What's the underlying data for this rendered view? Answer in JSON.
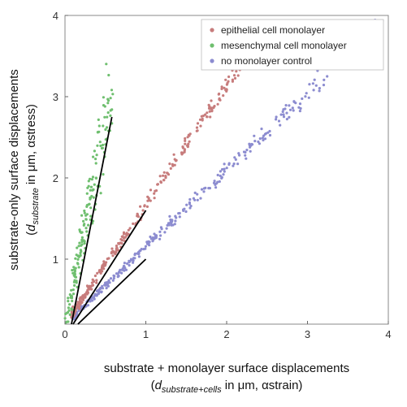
{
  "chart_data": {
    "type": "scatter",
    "xlim": [
      0,
      4
    ],
    "ylim": [
      0.2,
      4
    ],
    "xticks": [
      0,
      1,
      2,
      3,
      4
    ],
    "yticks": [
      1,
      2,
      3,
      4
    ],
    "xlabel": {
      "line1": "substrate + monolayer surface displacements",
      "line2_open": "(",
      "line2_var": "d",
      "line2_sub": "substrate+cells",
      "line2_rest": " in μm, αstrain)"
    },
    "ylabel": {
      "line1": "substrate-only surface displacements",
      "line2_open": "(",
      "line2_var": "d",
      "line2_sub": "substrate",
      "line2_rest": " in μm, αstress)"
    },
    "legend_position": "top-right",
    "grid": false,
    "series": [
      {
        "name": "epithelial cell monolayer",
        "color": "#c77c7c",
        "slope": 1.55,
        "x_range": [
          0.08,
          2.3
        ],
        "noise": 0.09,
        "count": 300,
        "fit_line": {
          "x": [
            0.1,
            1.0
          ],
          "y": [
            0.2,
            1.6
          ]
        }
      },
      {
        "name": "mesenchymal cell monolayer",
        "color": "#6fbf6f",
        "slope": 5.0,
        "x_range": [
          0.0,
          0.6
        ],
        "noise": 0.45,
        "count": 170,
        "fit_line": {
          "x": [
            0.08,
            0.58
          ],
          "y": [
            0.2,
            2.75
          ]
        }
      },
      {
        "name": "no monolayer control",
        "color": "#8c8cd0",
        "slope": 1.0,
        "x_range": [
          0.1,
          4.0
        ],
        "noise": 0.07,
        "count": 360,
        "fit_line": {
          "x": [
            0.16,
            1.0
          ],
          "y": [
            0.2,
            1.0
          ]
        }
      }
    ]
  }
}
